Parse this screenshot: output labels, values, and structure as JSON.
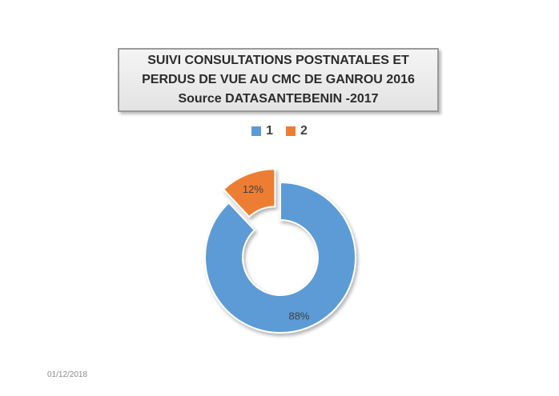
{
  "chart_data": {
    "type": "pie",
    "variant": "donut",
    "title": [
      "SUIVI CONSULTATIONS POSTNATALES ET",
      "PERDUS DE VUE AU CMC DE GANROU 2016",
      "Source DATASANTEBENIN -2017"
    ],
    "categories": [
      "1",
      "2"
    ],
    "values": [
      88,
      12
    ],
    "data_labels": [
      "88%",
      "12%"
    ],
    "colors": [
      "#5b9bd5",
      "#ed7d31"
    ],
    "exploded_slices": [
      1
    ],
    "legend_position": "top"
  },
  "footer": {
    "date": "01/12/2018"
  }
}
